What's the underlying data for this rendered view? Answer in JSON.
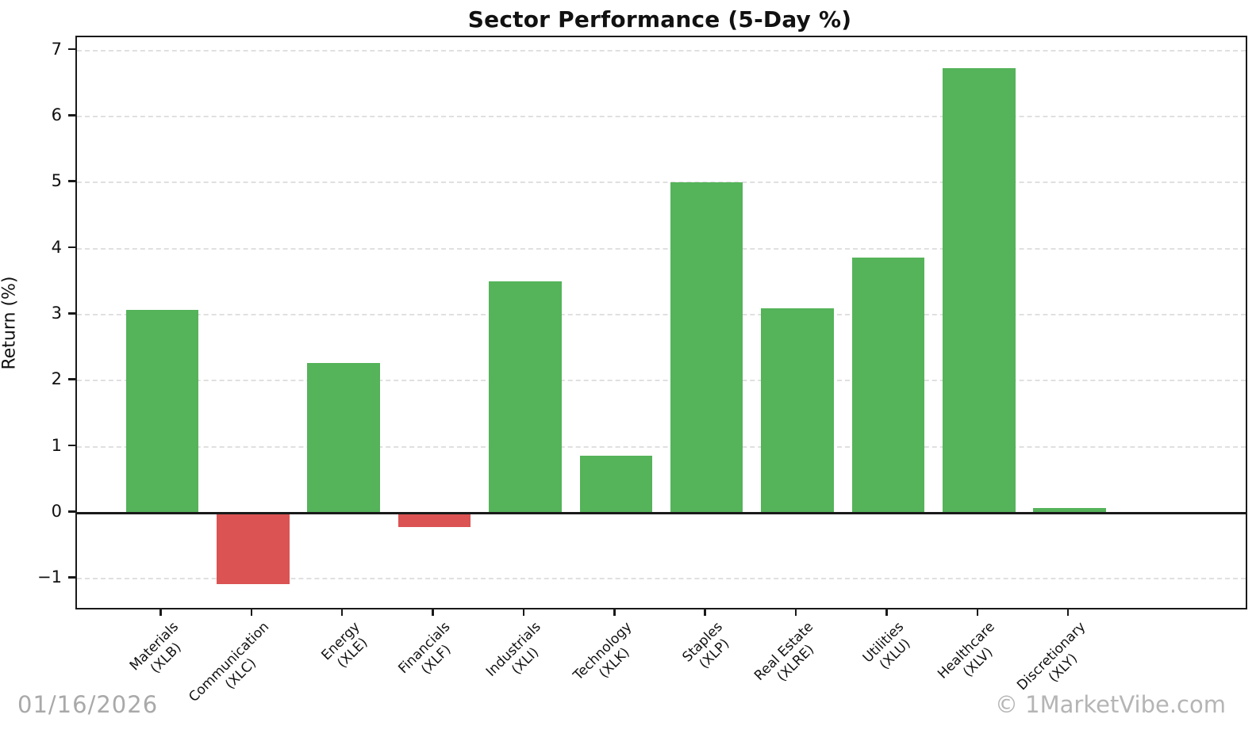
{
  "footer": {
    "date": "01/16/2026",
    "watermark": "© 1MarketVibe.com"
  },
  "chart_data": {
    "type": "bar",
    "title": "Sector Performance (5-Day %)",
    "xlabel": "",
    "ylabel": "Return (%)",
    "categories": [
      {
        "name": "Materials",
        "ticker": "(XLB)"
      },
      {
        "name": "Communication",
        "ticker": "(XLC)"
      },
      {
        "name": "Energy",
        "ticker": "(XLE)"
      },
      {
        "name": "Financials",
        "ticker": "(XLF)"
      },
      {
        "name": "Industrials",
        "ticker": "(XLI)"
      },
      {
        "name": "Technology",
        "ticker": "(XLK)"
      },
      {
        "name": "Staples",
        "ticker": "(XLP)"
      },
      {
        "name": "Real Estate",
        "ticker": "(XLRE)"
      },
      {
        "name": "Utilities",
        "ticker": "(XLU)"
      },
      {
        "name": "Healthcare",
        "ticker": "(XLV)"
      },
      {
        "name": "Discretionary",
        "ticker": "(XLY)"
      }
    ],
    "values": [
      3.07,
      -1.08,
      2.27,
      -0.22,
      3.51,
      0.86,
      5.01,
      3.1,
      3.87,
      6.73,
      0.07
    ],
    "yticks": [
      -1,
      0,
      1,
      2,
      3,
      4,
      5,
      6,
      7
    ],
    "ylim": [
      -1.44,
      7.2
    ],
    "grid": true,
    "legend": false,
    "colors": {
      "positive": "#55b35a",
      "negative": "#db5353"
    }
  }
}
